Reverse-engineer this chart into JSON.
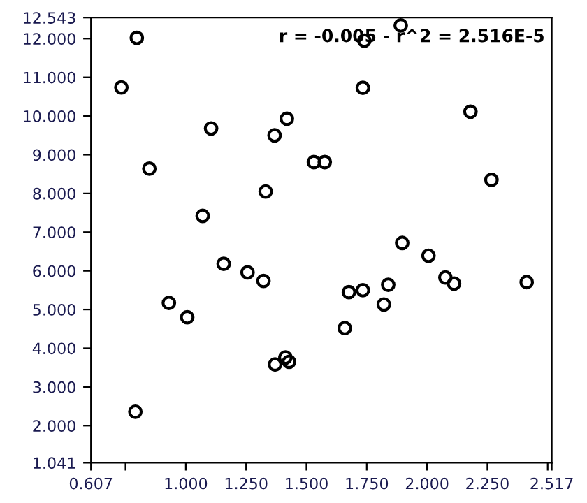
{
  "chart_data": {
    "type": "scatter",
    "marker": "circle",
    "grid": false,
    "legend": false,
    "annotations": [
      "r = -0.005 - r^2 = 2.516E-5"
    ],
    "xlim": [
      0.607,
      2.517
    ],
    "ylim": [
      1.041,
      12.543
    ],
    "xticks": [
      0.607,
      {
        "value": 0.75,
        "label": null
      },
      {
        "value": 1,
        "label": "1.000"
      },
      {
        "value": 1.25,
        "label": "1.250"
      },
      {
        "value": 1.5,
        "label": "1.500"
      },
      {
        "value": 1.75,
        "label": "1.750"
      },
      {
        "value": 2,
        "label": "2.000"
      },
      {
        "value": 2.25,
        "label": "2.250"
      },
      {
        "value": 2.5,
        "label": null
      },
      2.517
    ],
    "yticks": [
      1.041,
      {
        "value": 2,
        "label": "2.000"
      },
      {
        "value": 3,
        "label": "3.000"
      },
      {
        "value": 4,
        "label": "4.000"
      },
      {
        "value": 5,
        "label": "5.000"
      },
      {
        "value": 6,
        "label": "6.000"
      },
      {
        "value": 7,
        "label": "7.000"
      },
      {
        "value": 8,
        "label": "8.000"
      },
      {
        "value": 9,
        "label": "9.000"
      },
      {
        "value": 10,
        "label": "10.000"
      },
      {
        "value": 11,
        "label": "11.000"
      },
      {
        "value": 12,
        "label": "12.000"
      },
      12.543
    ],
    "series": [
      {
        "color": "#000000",
        "x": [
          0.733,
          0.797,
          0.849,
          0.791,
          0.93,
          1.006,
          1.07,
          1.105,
          1.157,
          1.256,
          1.322,
          1.331,
          1.368,
          1.419,
          1.37,
          1.413,
          1.428,
          1.531,
          1.576,
          1.734,
          1.74,
          1.891,
          2.18,
          2.267,
          1.897,
          2.006,
          2.076,
          2.112,
          2.413,
          1.839,
          1.821,
          1.734,
          1.676,
          1.659
        ],
        "values": [
          10.74,
          12.02,
          8.64,
          2.36,
          5.17,
          4.8,
          7.42,
          9.68,
          6.18,
          5.96,
          5.74,
          8.05,
          9.5,
          9.93,
          3.58,
          3.76,
          3.65,
          8.81,
          8.81,
          10.73,
          11.95,
          12.34,
          10.11,
          8.35,
          6.72,
          6.39,
          5.83,
          5.67,
          5.71,
          5.64,
          5.13,
          5.5,
          5.45,
          4.52
        ]
      }
    ]
  }
}
